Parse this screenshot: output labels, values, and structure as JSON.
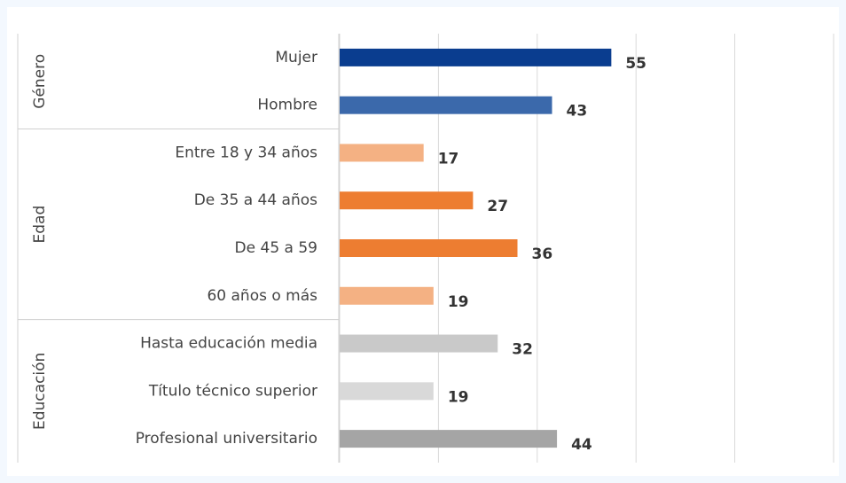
{
  "chart_data": {
    "type": "bar",
    "orientation": "horizontal",
    "groups": [
      {
        "label": "Género",
        "categories": [
          "Mujer",
          "Hombre"
        ],
        "values": [
          55,
          43
        ],
        "colors": [
          "#0a3d8f",
          "#3b69ab"
        ]
      },
      {
        "label": "Edad",
        "categories": [
          "Entre 18 y 34 años",
          "De 35 a 44 años",
          "De 45 a 59",
          "60 años o más"
        ],
        "values": [
          17,
          27,
          36,
          19
        ],
        "colors": [
          "#f4b183",
          "#ed7d31",
          "#ed7d31",
          "#f4b183"
        ]
      },
      {
        "label": "Educación",
        "categories": [
          "Hasta educación media",
          "Título técnico superior",
          "Profesional universitario"
        ],
        "values": [
          32,
          19,
          44
        ],
        "colors": [
          "#c9c9c9",
          "#d9d9d9",
          "#a5a5a5"
        ]
      }
    ],
    "xlim": [
      0,
      100
    ],
    "xticks": [
      0,
      20,
      40,
      60,
      80,
      100
    ],
    "grid": true
  }
}
